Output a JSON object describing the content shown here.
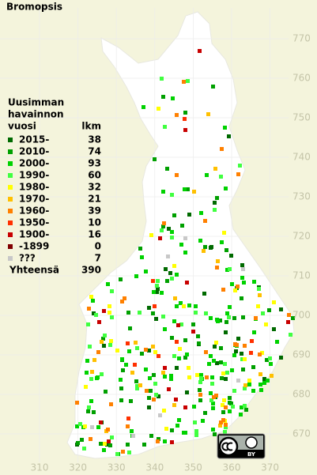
{
  "title": "Bromopsis",
  "legend": {
    "heading": [
      "Uusimman",
      "havainnon",
      "vuosi"
    ],
    "count_heading": "lkm",
    "rows": [
      {
        "label": "2015-",
        "count": 38,
        "color": "#006a00"
      },
      {
        "label": "2010-",
        "count": 74,
        "color": "#00a000"
      },
      {
        "label": "2000-",
        "count": 93,
        "color": "#00d200"
      },
      {
        "label": "1990-",
        "count": 60,
        "color": "#40ff40"
      },
      {
        "label": "1980-",
        "count": 32,
        "color": "#ffff00"
      },
      {
        "label": "1970-",
        "count": 21,
        "color": "#ffc000"
      },
      {
        "label": "1960-",
        "count": 39,
        "color": "#ff8000"
      },
      {
        "label": "1950-",
        "count": 10,
        "color": "#ff3000"
      },
      {
        "label": "1900-",
        "count": 16,
        "color": "#c80000"
      },
      {
        "label": "-1899",
        "count": 0,
        "color": "#800000"
      },
      {
        "label": "???",
        "count": 7,
        "color": "#c8c8c8"
      }
    ],
    "total_label": "Yhteensä",
    "total": 390
  },
  "x_axis": {
    "ticks": [
      310,
      320,
      330,
      340,
      350,
      360,
      370
    ]
  },
  "y_axis": {
    "ticks": [
      670,
      680,
      690,
      700,
      710,
      720,
      730,
      740,
      750,
      760,
      770
    ]
  },
  "license": {
    "label": "BY"
  }
}
